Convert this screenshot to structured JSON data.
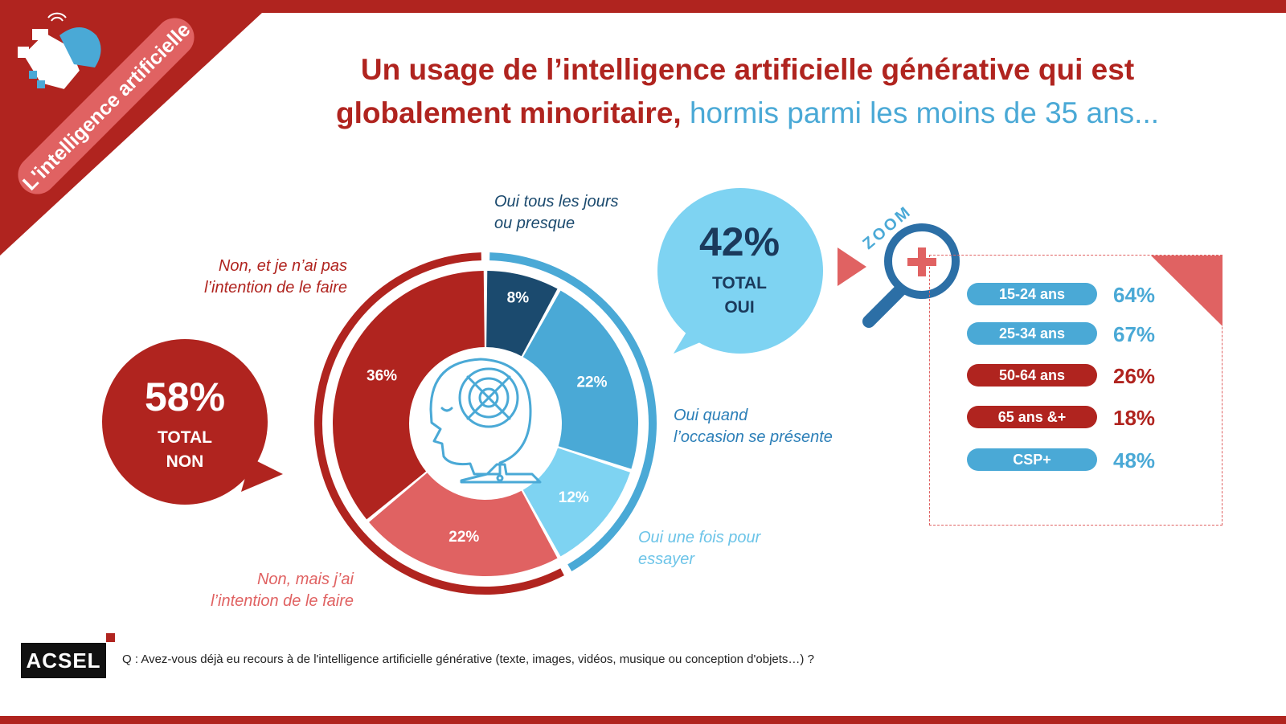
{
  "header": {
    "corner_tag": "L'intelligence artificielle",
    "title_main_line1": "Un usage de l’intelligence artificielle générative qui est",
    "title_main_line2": "globalement minoritaire,",
    "title_sub": "hormis parmi les moins de 35 ans..."
  },
  "colors": {
    "brand_red": "#b0241f",
    "salmon": "#e06262",
    "dark_blue": "#1b4a6e",
    "mid_blue": "#4aa9d6",
    "light_blue": "#7ed3f2"
  },
  "icons": [
    "ai-head-icon",
    "magnifier-zoom-icon",
    "handshake-icon"
  ],
  "chart_data": {
    "type": "pie",
    "variant": "donut",
    "categories": [
      "Oui tous les jours ou presque",
      "Oui quand l’occasion se présente",
      "Oui une fois pour essayer",
      "Non, mais j’ai l’intention de le faire",
      "Non, et je n’ai pas l’intention de le faire"
    ],
    "values": [
      8,
      22,
      12,
      22,
      36
    ],
    "value_labels": [
      "8%",
      "22%",
      "12%",
      "22%",
      "36%"
    ],
    "colors": [
      "#1b4a6e",
      "#4aa9d6",
      "#7ed3f2",
      "#e06262",
      "#b0241f"
    ],
    "totals": {
      "oui": {
        "value": "42%",
        "label_1": "TOTAL",
        "label_2": "OUI"
      },
      "non": {
        "value": "58%",
        "label_1": "TOTAL",
        "label_2": "NON"
      }
    }
  },
  "category_labels": {
    "oui_tous": "Oui tous les jours ou presque",
    "oui_quand": "Oui quand l’occasion se présente",
    "oui_fois": "Oui une fois pour essayer",
    "non_mais": "Non, mais j’ai l’intention de le faire",
    "non_pas": "Non, et je n’ai pas l’intention de le faire"
  },
  "zoom": {
    "label": "ZOOM",
    "rows": [
      {
        "group": "15-24 ans",
        "value": "64%",
        "color": "#4aa9d6"
      },
      {
        "group": "25-34 ans",
        "value": "67%",
        "color": "#4aa9d6"
      },
      {
        "group": "50-64 ans",
        "value": "26%",
        "color": "#b0241f"
      },
      {
        "group": "65 ans &+",
        "value": "18%",
        "color": "#b0241f"
      },
      {
        "group": "CSP+",
        "value": "48%",
        "color": "#4aa9d6"
      }
    ]
  },
  "footer": {
    "logo": "ACSEL",
    "question": "Q : Avez-vous déjà eu recours à de l'intelligence artificielle générative (texte, images, vidéos, musique ou conception d'objets…) ?"
  }
}
